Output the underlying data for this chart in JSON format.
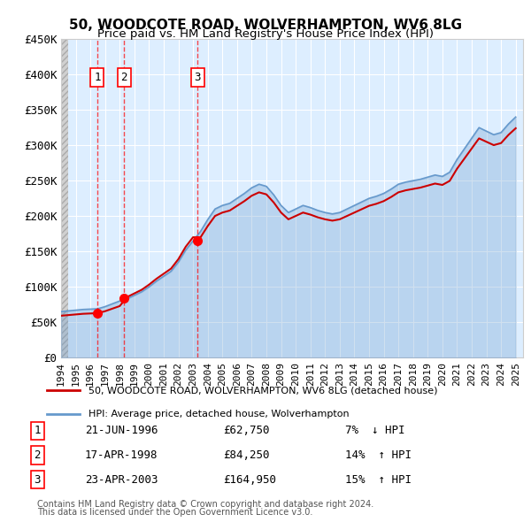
{
  "title1": "50, WOODCOTE ROAD, WOLVERHAMPTON, WV6 8LG",
  "title2": "Price paid vs. HM Land Registry's House Price Index (HPI)",
  "ylabel": "",
  "xlabel": "",
  "yticks": [
    0,
    50000,
    100000,
    150000,
    200000,
    250000,
    300000,
    350000,
    400000,
    450000
  ],
  "ytick_labels": [
    "£0",
    "£50K",
    "£100K",
    "£150K",
    "£200K",
    "£250K",
    "£300K",
    "£350K",
    "£400K",
    "£450K"
  ],
  "xmin": 1994.0,
  "xmax": 2025.5,
  "ymin": 0,
  "ymax": 450000,
  "transactions": [
    {
      "num": 1,
      "date": "21-JUN-1996",
      "year": 1996.47,
      "price": 62750,
      "pct": "7%",
      "dir": "↓"
    },
    {
      "num": 2,
      "date": "17-APR-1998",
      "year": 1998.29,
      "price": 84250,
      "pct": "14%",
      "dir": "↑"
    },
    {
      "num": 3,
      "date": "23-APR-2003",
      "year": 2003.31,
      "price": 164950,
      "pct": "15%",
      "dir": "↑"
    }
  ],
  "legend1": "50, WOODCOTE ROAD, WOLVERHAMPTON, WV6 8LG (detached house)",
  "legend2": "HPI: Average price, detached house, Wolverhampton",
  "footnote1": "Contains HM Land Registry data © Crown copyright and database right 2024.",
  "footnote2": "This data is licensed under the Open Government Licence v3.0.",
  "hpi_color": "#aac4e0",
  "price_color": "#cc0000",
  "bg_plot": "#ddeeff",
  "bg_hatch": "#e8e8e8",
  "grid_color": "#ffffff",
  "hpi_line_color": "#6699cc",
  "price_line_color": "#cc0000"
}
